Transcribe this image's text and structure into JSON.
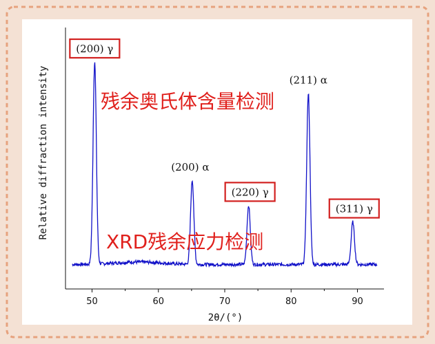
{
  "chart_data": {
    "type": "line",
    "title": "",
    "xlabel": "2θ/(°)",
    "ylabel": "Relative diffraction intensity",
    "xlim": [
      46,
      94
    ],
    "ylim": [
      0,
      100
    ],
    "x_ticks": [
      50,
      60,
      70,
      80,
      90
    ],
    "y_ticks_shown": false,
    "grid": false,
    "series": [
      {
        "color": "#1010c8",
        "peaks": [
          {
            "x": 50.4,
            "y": 100,
            "label": "(200) γ",
            "boxed": true
          },
          {
            "x": 65.1,
            "y": 43,
            "label": "(200) α",
            "boxed": false
          },
          {
            "x": 73.6,
            "y": 31,
            "label": "(220) γ",
            "boxed": true
          },
          {
            "x": 82.6,
            "y": 85,
            "label": "(211) α",
            "boxed": false
          },
          {
            "x": 89.3,
            "y": 23,
            "label": "(311) γ",
            "boxed": true
          }
        ],
        "baseline": 2.5
      }
    ],
    "annotations": [
      {
        "text": "残余奥氏体含量检测",
        "color": "#e0201c"
      },
      {
        "text": "XRD残余应力检测",
        "color": "#e0201c"
      }
    ],
    "accent_box_color": "#d2201f"
  }
}
